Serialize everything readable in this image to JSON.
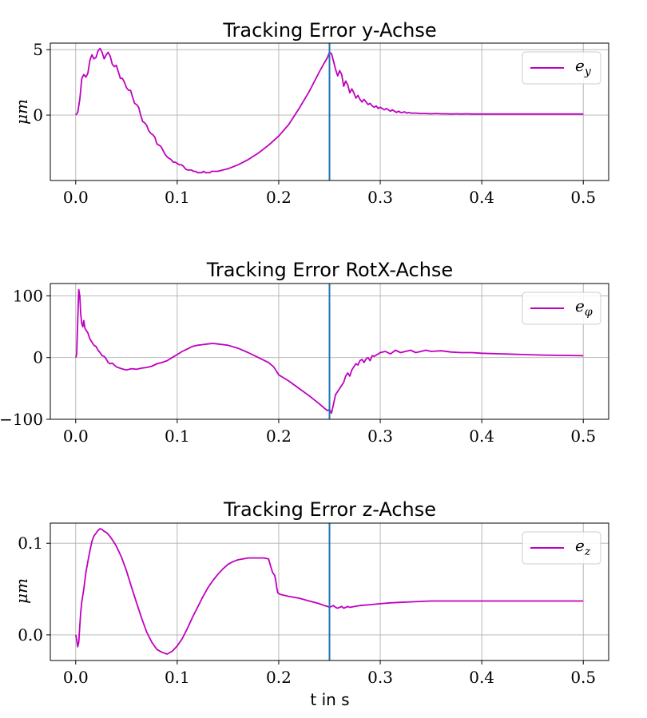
{
  "colors": {
    "series": "#bf00bf",
    "marker_line": "#1f77b4",
    "grid": "#b0b0b0",
    "axes": "#000000"
  },
  "chart_data": [
    {
      "type": "line",
      "title": "Tracking Error y-Achse",
      "xlabel": "",
      "ylabel": "μm",
      "xlim": [
        -0.025,
        0.525
      ],
      "ylim": [
        -5,
        5.5
      ],
      "xticks": [
        0.0,
        0.1,
        0.2,
        0.3,
        0.4,
        0.5
      ],
      "xtick_labels": [
        "0.0",
        "0.1",
        "0.2",
        "0.3",
        "0.4",
        "0.5"
      ],
      "yticks": [
        0,
        5
      ],
      "ytick_labels": [
        "0",
        "5"
      ],
      "vline_x": 0.25,
      "legend": {
        "label": "e",
        "subscript": "y",
        "position": "top-right"
      },
      "grid": true,
      "series": [
        {
          "name": "e_y",
          "x": [
            0.0,
            0.002,
            0.004,
            0.006,
            0.008,
            0.01,
            0.012,
            0.014,
            0.016,
            0.018,
            0.02,
            0.022,
            0.024,
            0.026,
            0.028,
            0.03,
            0.032,
            0.034,
            0.036,
            0.038,
            0.04,
            0.042,
            0.044,
            0.046,
            0.048,
            0.05,
            0.052,
            0.054,
            0.056,
            0.058,
            0.06,
            0.062,
            0.064,
            0.066,
            0.068,
            0.07,
            0.072,
            0.074,
            0.076,
            0.078,
            0.08,
            0.082,
            0.084,
            0.086,
            0.088,
            0.09,
            0.092,
            0.094,
            0.096,
            0.098,
            0.1,
            0.102,
            0.104,
            0.106,
            0.108,
            0.11,
            0.112,
            0.114,
            0.116,
            0.118,
            0.12,
            0.122,
            0.124,
            0.126,
            0.128,
            0.13,
            0.132,
            0.134,
            0.136,
            0.138,
            0.14,
            0.15,
            0.16,
            0.17,
            0.18,
            0.19,
            0.2,
            0.21,
            0.22,
            0.23,
            0.24,
            0.245,
            0.248,
            0.25,
            0.252,
            0.254,
            0.256,
            0.258,
            0.26,
            0.262,
            0.264,
            0.266,
            0.268,
            0.27,
            0.272,
            0.274,
            0.276,
            0.278,
            0.28,
            0.282,
            0.284,
            0.286,
            0.288,
            0.29,
            0.292,
            0.294,
            0.296,
            0.298,
            0.3,
            0.302,
            0.304,
            0.306,
            0.308,
            0.31,
            0.312,
            0.314,
            0.316,
            0.318,
            0.32,
            0.322,
            0.324,
            0.326,
            0.328,
            0.33,
            0.335,
            0.34,
            0.345,
            0.35,
            0.355,
            0.36,
            0.365,
            0.37,
            0.375,
            0.38,
            0.385,
            0.39,
            0.4,
            0.42,
            0.44,
            0.46,
            0.48,
            0.5
          ],
          "y": [
            0.0,
            0.2,
            1.2,
            2.8,
            3.1,
            2.9,
            3.2,
            4.2,
            4.6,
            4.3,
            4.4,
            4.9,
            5.1,
            4.8,
            4.3,
            4.6,
            4.8,
            4.5,
            3.9,
            3.7,
            3.8,
            3.3,
            2.8,
            2.8,
            2.5,
            2.1,
            1.9,
            1.9,
            1.4,
            0.9,
            0.8,
            0.6,
            0.0,
            -0.5,
            -0.6,
            -0.8,
            -1.2,
            -1.4,
            -1.5,
            -1.7,
            -2.2,
            -2.3,
            -2.4,
            -2.7,
            -3.0,
            -3.2,
            -3.3,
            -3.4,
            -3.6,
            -3.6,
            -3.7,
            -3.8,
            -3.8,
            -3.9,
            -4.1,
            -4.2,
            -4.2,
            -4.2,
            -4.3,
            -4.3,
            -4.4,
            -4.4,
            -4.4,
            -4.3,
            -4.4,
            -4.4,
            -4.4,
            -4.3,
            -4.3,
            -4.3,
            -4.3,
            -4.1,
            -3.8,
            -3.4,
            -2.9,
            -2.3,
            -1.6,
            -0.7,
            0.5,
            1.8,
            3.3,
            4.0,
            4.4,
            4.8,
            4.7,
            4.1,
            3.5,
            3.0,
            3.4,
            3.1,
            2.2,
            2.6,
            2.3,
            1.7,
            2.0,
            1.7,
            1.3,
            1.5,
            1.2,
            1.0,
            1.2,
            1.0,
            0.8,
            0.9,
            0.7,
            0.6,
            0.7,
            0.5,
            0.6,
            0.5,
            0.4,
            0.5,
            0.4,
            0.3,
            0.4,
            0.3,
            0.2,
            0.3,
            0.2,
            0.2,
            0.25,
            0.15,
            0.2,
            0.15,
            0.15,
            0.12,
            0.12,
            0.1,
            0.12,
            0.1,
            0.1,
            0.08,
            0.1,
            0.08,
            0.1,
            0.08,
            0.08,
            0.08,
            0.08,
            0.08,
            0.08,
            0.08
          ]
        }
      ]
    },
    {
      "type": "line",
      "title": "Tracking Error RotX-Achse",
      "xlabel": "",
      "ylabel": "",
      "xlim": [
        -0.025,
        0.525
      ],
      "ylim": [
        -100,
        120
      ],
      "xticks": [
        0.0,
        0.1,
        0.2,
        0.3,
        0.4,
        0.5
      ],
      "xtick_labels": [
        "0.0",
        "0.1",
        "0.2",
        "0.3",
        "0.4",
        "0.5"
      ],
      "yticks": [
        -100,
        0,
        100
      ],
      "ytick_labels": [
        "−100",
        "0",
        "100"
      ],
      "vline_x": 0.25,
      "legend": {
        "label": "e",
        "subscript": "φ",
        "position": "top-right"
      },
      "grid": true,
      "series": [
        {
          "name": "e_phi",
          "x": [
            0.0,
            0.001,
            0.002,
            0.003,
            0.004,
            0.005,
            0.006,
            0.007,
            0.008,
            0.009,
            0.01,
            0.012,
            0.014,
            0.016,
            0.018,
            0.02,
            0.022,
            0.024,
            0.026,
            0.028,
            0.03,
            0.032,
            0.034,
            0.036,
            0.038,
            0.04,
            0.045,
            0.05,
            0.055,
            0.06,
            0.065,
            0.07,
            0.075,
            0.08,
            0.085,
            0.09,
            0.095,
            0.1,
            0.105,
            0.11,
            0.115,
            0.12,
            0.125,
            0.13,
            0.135,
            0.14,
            0.145,
            0.15,
            0.16,
            0.17,
            0.18,
            0.19,
            0.195,
            0.197,
            0.2,
            0.21,
            0.22,
            0.23,
            0.24,
            0.245,
            0.248,
            0.25,
            0.252,
            0.254,
            0.256,
            0.258,
            0.26,
            0.262,
            0.264,
            0.266,
            0.268,
            0.27,
            0.272,
            0.274,
            0.276,
            0.278,
            0.28,
            0.282,
            0.284,
            0.286,
            0.288,
            0.29,
            0.292,
            0.294,
            0.296,
            0.298,
            0.3,
            0.305,
            0.31,
            0.315,
            0.32,
            0.325,
            0.33,
            0.335,
            0.34,
            0.345,
            0.35,
            0.36,
            0.37,
            0.38,
            0.39,
            0.4,
            0.42,
            0.44,
            0.46,
            0.48,
            0.5
          ],
          "y": [
            0,
            5,
            60,
            110,
            100,
            70,
            55,
            50,
            60,
            48,
            45,
            40,
            30,
            25,
            20,
            18,
            12,
            8,
            3,
            2,
            -2,
            -8,
            -10,
            -9,
            -12,
            -15,
            -18,
            -20,
            -18,
            -19,
            -17,
            -16,
            -14,
            -10,
            -8,
            -5,
            0,
            5,
            10,
            14,
            18,
            20,
            21,
            22,
            23,
            22,
            21,
            20,
            15,
            8,
            0,
            -8,
            -15,
            -20,
            -28,
            -38,
            -50,
            -62,
            -75,
            -82,
            -86,
            -84,
            -90,
            -75,
            -60,
            -55,
            -50,
            -45,
            -40,
            -30,
            -25,
            -30,
            -20,
            -15,
            -10,
            -12,
            -5,
            -3,
            -8,
            -2,
            0,
            -5,
            3,
            2,
            4,
            6,
            8,
            10,
            6,
            12,
            8,
            10,
            12,
            8,
            10,
            12,
            10,
            11,
            9,
            8,
            8,
            7,
            6,
            5,
            4,
            3.5,
            3
          ]
        }
      ]
    },
    {
      "type": "line",
      "title": "Tracking Error z-Achse",
      "xlabel": "t in s",
      "ylabel": "μm",
      "xlim": [
        -0.025,
        0.525
      ],
      "ylim": [
        -0.028,
        0.122
      ],
      "xticks": [
        0.0,
        0.1,
        0.2,
        0.3,
        0.4,
        0.5
      ],
      "xtick_labels": [
        "0.0",
        "0.1",
        "0.2",
        "0.3",
        "0.4",
        "0.5"
      ],
      "yticks": [
        0.0,
        0.1
      ],
      "ytick_labels": [
        "0.0",
        "0.1"
      ],
      "vline_x": 0.25,
      "legend": {
        "label": "e",
        "subscript": "z",
        "position": "top-right"
      },
      "grid": true,
      "series": [
        {
          "name": "e_z",
          "x": [
            0.0,
            0.001,
            0.002,
            0.003,
            0.004,
            0.005,
            0.006,
            0.008,
            0.01,
            0.012,
            0.014,
            0.016,
            0.018,
            0.02,
            0.022,
            0.024,
            0.026,
            0.028,
            0.03,
            0.032,
            0.034,
            0.036,
            0.04,
            0.045,
            0.05,
            0.055,
            0.06,
            0.065,
            0.07,
            0.075,
            0.08,
            0.085,
            0.09,
            0.095,
            0.1,
            0.105,
            0.11,
            0.115,
            0.12,
            0.125,
            0.13,
            0.135,
            0.14,
            0.145,
            0.15,
            0.155,
            0.16,
            0.165,
            0.17,
            0.175,
            0.18,
            0.185,
            0.19,
            0.192,
            0.194,
            0.196,
            0.197,
            0.198,
            0.199,
            0.2,
            0.202,
            0.21,
            0.22,
            0.23,
            0.24,
            0.245,
            0.248,
            0.25,
            0.252,
            0.254,
            0.256,
            0.258,
            0.26,
            0.262,
            0.264,
            0.266,
            0.268,
            0.27,
            0.275,
            0.28,
            0.29,
            0.3,
            0.31,
            0.32,
            0.33,
            0.34,
            0.35,
            0.36,
            0.38,
            0.4,
            0.42,
            0.44,
            0.46,
            0.48,
            0.5
          ],
          "y": [
            0.0,
            -0.005,
            -0.013,
            -0.008,
            0.01,
            0.025,
            0.036,
            0.05,
            0.068,
            0.08,
            0.092,
            0.102,
            0.108,
            0.111,
            0.114,
            0.116,
            0.115,
            0.113,
            0.112,
            0.11,
            0.107,
            0.104,
            0.097,
            0.085,
            0.07,
            0.052,
            0.035,
            0.018,
            0.003,
            -0.008,
            -0.016,
            -0.019,
            -0.021,
            -0.018,
            -0.012,
            -0.004,
            0.007,
            0.019,
            0.03,
            0.041,
            0.051,
            0.059,
            0.066,
            0.072,
            0.077,
            0.08,
            0.082,
            0.083,
            0.084,
            0.084,
            0.084,
            0.084,
            0.083,
            0.075,
            0.068,
            0.065,
            0.06,
            0.052,
            0.046,
            0.045,
            0.044,
            0.042,
            0.04,
            0.037,
            0.034,
            0.032,
            0.031,
            0.03,
            0.031,
            0.032,
            0.03,
            0.029,
            0.03,
            0.031,
            0.029,
            0.03,
            0.031,
            0.03,
            0.031,
            0.032,
            0.033,
            0.034,
            0.035,
            0.0355,
            0.036,
            0.0365,
            0.037,
            0.037,
            0.037,
            0.037,
            0.037,
            0.037,
            0.037,
            0.037,
            0.037
          ]
        }
      ]
    }
  ]
}
